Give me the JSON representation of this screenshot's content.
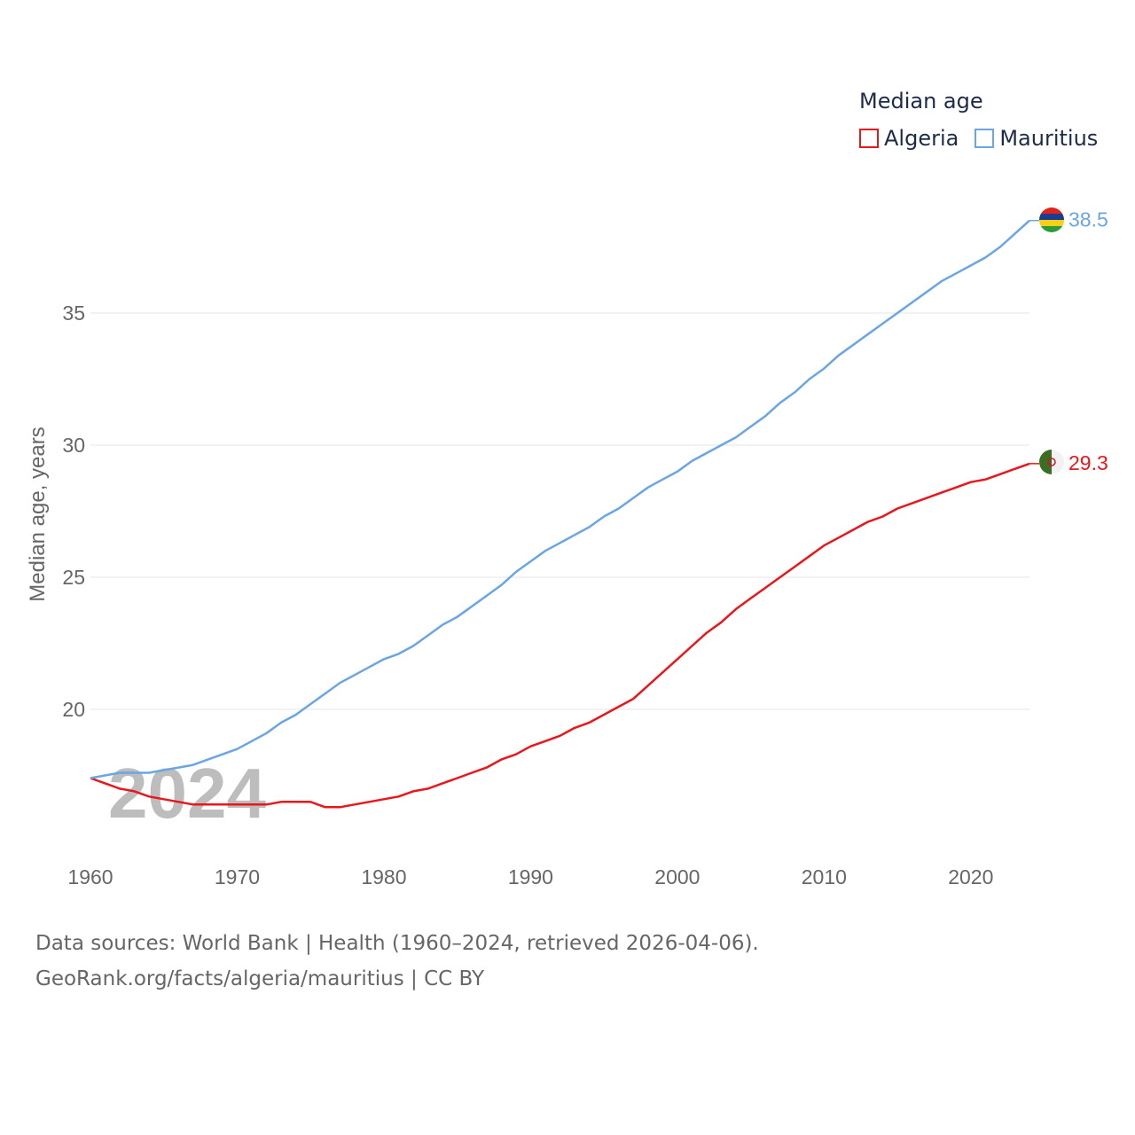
{
  "legend": {
    "title": "Median age",
    "items": [
      {
        "name": "Algeria",
        "color": "#e8171c"
      },
      {
        "name": "Mauritius",
        "color": "#6aa6e3"
      }
    ]
  },
  "footer": {
    "line1": "Data sources: World Bank | Health (1960–2024, retrieved 2026-04-06).",
    "line2": "GeoRank.org/facts/algeria/mauritius | CC BY"
  },
  "chart_data": {
    "type": "line",
    "title": "Median age",
    "xlabel": "",
    "ylabel": "Median age, years",
    "xlim": [
      1960,
      2024
    ],
    "ylim": [
      14.5,
      40
    ],
    "x_ticks": [
      1960,
      1970,
      1980,
      1990,
      2000,
      2010,
      2020
    ],
    "y_ticks": [
      20,
      25,
      30,
      35
    ],
    "grid": true,
    "year_watermark": "2024",
    "x": [
      1960,
      1961,
      1962,
      1963,
      1964,
      1965,
      1966,
      1967,
      1968,
      1969,
      1970,
      1971,
      1972,
      1973,
      1974,
      1975,
      1976,
      1977,
      1978,
      1979,
      1980,
      1981,
      1982,
      1983,
      1984,
      1985,
      1986,
      1987,
      1988,
      1989,
      1990,
      1991,
      1992,
      1993,
      1994,
      1995,
      1996,
      1997,
      1998,
      1999,
      2000,
      2001,
      2002,
      2003,
      2004,
      2005,
      2006,
      2007,
      2008,
      2009,
      2010,
      2011,
      2012,
      2013,
      2014,
      2015,
      2016,
      2017,
      2018,
      2019,
      2020,
      2021,
      2022,
      2023,
      2024
    ],
    "series": [
      {
        "name": "Algeria",
        "color": "#e8171c",
        "end_label": "29.3",
        "values": [
          17.4,
          17.2,
          17.0,
          16.9,
          16.7,
          16.6,
          16.5,
          16.4,
          16.4,
          16.4,
          16.4,
          16.4,
          16.4,
          16.5,
          16.5,
          16.5,
          16.3,
          16.3,
          16.4,
          16.5,
          16.6,
          16.7,
          16.9,
          17.0,
          17.2,
          17.4,
          17.6,
          17.8,
          18.1,
          18.3,
          18.6,
          18.8,
          19.0,
          19.3,
          19.5,
          19.8,
          20.1,
          20.4,
          20.9,
          21.4,
          21.9,
          22.4,
          22.9,
          23.3,
          23.8,
          24.2,
          24.6,
          25.0,
          25.4,
          25.8,
          26.2,
          26.5,
          26.8,
          27.1,
          27.3,
          27.6,
          27.8,
          28.0,
          28.2,
          28.4,
          28.6,
          28.7,
          28.9,
          29.1,
          29.3
        ]
      },
      {
        "name": "Mauritius",
        "color": "#6aa6e3",
        "end_label": "38.5",
        "values": [
          17.4,
          17.5,
          17.6,
          17.6,
          17.6,
          17.7,
          17.8,
          17.9,
          18.1,
          18.3,
          18.5,
          18.8,
          19.1,
          19.5,
          19.8,
          20.2,
          20.6,
          21.0,
          21.3,
          21.6,
          21.9,
          22.1,
          22.4,
          22.8,
          23.2,
          23.5,
          23.9,
          24.3,
          24.7,
          25.2,
          25.6,
          26.0,
          26.3,
          26.6,
          26.9,
          27.3,
          27.6,
          28.0,
          28.4,
          28.7,
          29.0,
          29.4,
          29.7,
          30.0,
          30.3,
          30.7,
          31.1,
          31.6,
          32.0,
          32.5,
          32.9,
          33.4,
          33.8,
          34.2,
          34.6,
          35.0,
          35.4,
          35.8,
          36.2,
          36.5,
          36.8,
          37.1,
          37.5,
          38.0,
          38.5
        ]
      }
    ]
  }
}
